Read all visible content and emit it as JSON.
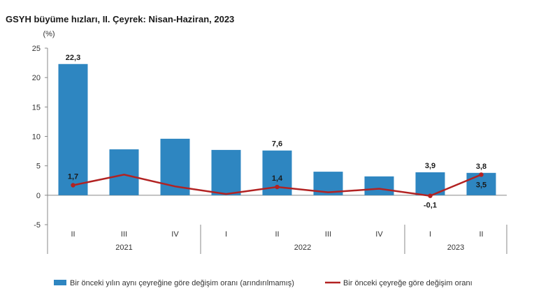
{
  "chart_data": {
    "type": "bar",
    "title": "GSYH büyüme hızları, II. Çeyrek: Nisan-Haziran, 2023",
    "ylabel": "(%)",
    "xlabel": "",
    "ylim": [
      -5,
      25
    ],
    "yticks": [
      "-5",
      "0",
      "5",
      "10",
      "15",
      "20",
      "25"
    ],
    "categories": [
      "II",
      "III",
      "IV",
      "I",
      "II",
      "III",
      "IV",
      "I",
      "II"
    ],
    "year_groups": [
      {
        "label": "2021",
        "count": 3
      },
      {
        "label": "2022",
        "count": 4
      },
      {
        "label": "2023",
        "count": 2
      }
    ],
    "series": [
      {
        "name": "Bir önceki yılın aynı çeyreğine göre değişim oranı (arındırılmamış)",
        "kind": "bar",
        "color": "#2e86c1",
        "values": [
          22.3,
          7.8,
          9.6,
          7.7,
          7.6,
          4.0,
          3.2,
          3.9,
          3.8
        ],
        "labels": [
          "22,3",
          "",
          "",
          "",
          "7,6",
          "",
          "",
          "3,9",
          "3,8"
        ]
      },
      {
        "name": "Bir önceki çeyreğe göre değişim oranı",
        "kind": "line",
        "color": "#b22222",
        "values": [
          1.7,
          3.5,
          1.5,
          0.2,
          1.4,
          0.5,
          1.1,
          -0.1,
          3.5
        ],
        "labels": [
          "1,7",
          "",
          "",
          "",
          "1,4",
          "",
          "",
          "-0,1",
          "3,5"
        ]
      }
    ],
    "grid": false,
    "legend": "bottom"
  }
}
